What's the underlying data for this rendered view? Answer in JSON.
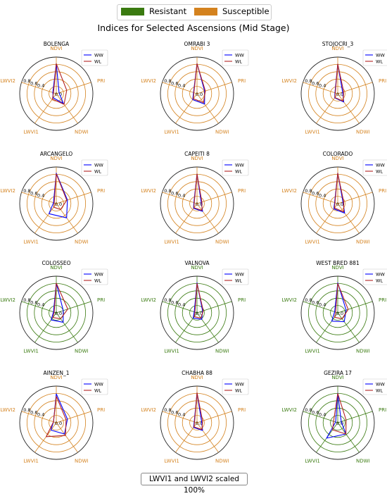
{
  "legend": {
    "items": [
      {
        "label": "Resistant",
        "color": "#3a7a10"
      },
      {
        "label": "Susceptible",
        "color": "#d4821e"
      }
    ]
  },
  "title": "Indices for Selected Ascensions (Mid Stage)",
  "footer_note": "LWVI1 and LWVI2 scaled 100%",
  "chart_data": [
    {
      "type": "radar",
      "title": "BOLENGA",
      "group": "Susceptible",
      "axes": [
        "NDVI",
        "PRI",
        "NDWI",
        "LWVI1",
        "LWVI2"
      ],
      "rlim": [
        0,
        1.0
      ],
      "rticks": [
        "0.0",
        "0.4",
        "0.6",
        "0.8"
      ],
      "series": [
        {
          "name": "WW",
          "color": "#0000ff",
          "values": [
            0.82,
            0.08,
            0.33,
            0.14,
            0.1
          ]
        },
        {
          "name": "WL",
          "color": "#b22222",
          "values": [
            0.82,
            0.3,
            0.36,
            0.18,
            0.08
          ]
        }
      ]
    },
    {
      "type": "radar",
      "title": "OMRABI 3",
      "group": "Susceptible",
      "axes": [
        "NDVI",
        "PRI",
        "NDWI",
        "LWVI1",
        "LWVI2"
      ],
      "rlim": [
        0,
        1.0
      ],
      "rticks": [
        "0.0",
        "0.4",
        "0.6",
        "0.8"
      ],
      "series": [
        {
          "name": "WW",
          "color": "#0000ff",
          "values": [
            0.82,
            0.22,
            0.35,
            0.2,
            0.1
          ]
        },
        {
          "name": "WL",
          "color": "#b22222",
          "values": [
            0.82,
            0.24,
            0.3,
            0.17,
            0.09
          ]
        }
      ]
    },
    {
      "type": "radar",
      "title": "STOJOCRI_3",
      "group": "Susceptible",
      "axes": [
        "NDVI",
        "PRI",
        "NDWI",
        "LWVI1",
        "LWVI2"
      ],
      "rlim": [
        0,
        1.0
      ],
      "rticks": [
        "0.0",
        "0.4",
        "0.6",
        "0.8"
      ],
      "series": [
        {
          "name": "WW",
          "color": "#0000ff",
          "values": [
            0.81,
            0.14,
            0.28,
            0.14,
            0.08
          ]
        },
        {
          "name": "WL",
          "color": "#b22222",
          "values": [
            0.81,
            0.17,
            0.25,
            0.13,
            0.07
          ]
        }
      ]
    },
    {
      "type": "radar",
      "title": "ARCANGELO",
      "group": "Susceptible",
      "axes": [
        "NDVI",
        "PRI",
        "NDWI",
        "LWVI1",
        "LWVI2"
      ],
      "rlim": [
        0,
        1.0
      ],
      "rticks": [
        "0.0",
        "0.4",
        "0.6",
        "0.8"
      ],
      "series": [
        {
          "name": "WW",
          "color": "#0000ff",
          "values": [
            0.83,
            0.32,
            0.48,
            0.34,
            0.08
          ]
        },
        {
          "name": "WL",
          "color": "#b22222",
          "values": [
            0.81,
            0.3,
            0.2,
            0.12,
            0.06
          ]
        }
      ]
    },
    {
      "type": "radar",
      "title": "CAPEITI 8",
      "group": "Susceptible",
      "axes": [
        "NDVI",
        "PRI",
        "NDWI",
        "LWVI1",
        "LWVI2"
      ],
      "rlim": [
        0,
        1.0
      ],
      "rticks": [
        "0.0",
        "0.4",
        "0.6",
        "0.8"
      ],
      "series": [
        {
          "name": "WW",
          "color": "#0000ff",
          "values": [
            0.81,
            0.12,
            0.26,
            0.16,
            0.09
          ]
        },
        {
          "name": "WL",
          "color": "#b22222",
          "values": [
            0.81,
            0.14,
            0.23,
            0.14,
            0.08
          ]
        }
      ]
    },
    {
      "type": "radar",
      "title": "COLORADO",
      "group": "Susceptible",
      "axes": [
        "NDVI",
        "PRI",
        "NDWI",
        "LWVI1",
        "LWVI2"
      ],
      "rlim": [
        0,
        1.0
      ],
      "rticks": [
        "0.0",
        "0.4",
        "0.6",
        "0.8"
      ],
      "series": [
        {
          "name": "WW",
          "color": "#0000ff",
          "values": [
            0.83,
            0.15,
            0.32,
            0.18,
            0.09
          ]
        },
        {
          "name": "WL",
          "color": "#b22222",
          "values": [
            0.83,
            0.17,
            0.28,
            0.15,
            0.08
          ]
        }
      ]
    },
    {
      "type": "radar",
      "title": "COLOSSEO",
      "group": "Resistant",
      "axes": [
        "NDVI",
        "PRI",
        "NDWI",
        "LWVI1",
        "LWVI2"
      ],
      "rlim": [
        0,
        1.0
      ],
      "rticks": [
        "0.0",
        "0.4",
        "0.6",
        "0.8"
      ],
      "series": [
        {
          "name": "WW",
          "color": "#0000ff",
          "values": [
            0.81,
            0.2,
            0.32,
            0.24,
            0.08
          ]
        },
        {
          "name": "WL",
          "color": "#b22222",
          "values": [
            0.81,
            0.33,
            0.2,
            0.16,
            0.06
          ]
        }
      ]
    },
    {
      "type": "radar",
      "title": "VALNOVA",
      "group": "Resistant",
      "axes": [
        "NDVI",
        "PRI",
        "NDWI",
        "LWVI1",
        "LWVI2"
      ],
      "rlim": [
        0,
        1.0
      ],
      "rticks": [
        "0.0",
        "0.4",
        "0.6",
        "0.8"
      ],
      "series": [
        {
          "name": "WW",
          "color": "#0000ff",
          "values": [
            0.82,
            0.16,
            0.22,
            0.18,
            0.08
          ]
        },
        {
          "name": "WL",
          "color": "#b22222",
          "values": [
            0.8,
            0.18,
            0.18,
            0.13,
            0.06
          ]
        }
      ]
    },
    {
      "type": "radar",
      "title": "WEST BRED 881",
      "group": "Resistant",
      "axes": [
        "NDVI",
        "PRI",
        "NDWI",
        "LWVI1",
        "LWVI2"
      ],
      "rlim": [
        0,
        1.0
      ],
      "rticks": [
        "0.0",
        "0.4",
        "0.6",
        "0.8"
      ],
      "series": [
        {
          "name": "WW",
          "color": "#0000ff",
          "values": [
            0.82,
            0.24,
            0.3,
            0.28,
            0.09
          ]
        },
        {
          "name": "WL",
          "color": "#b22222",
          "values": [
            0.8,
            0.3,
            0.2,
            0.15,
            0.06
          ]
        }
      ]
    },
    {
      "type": "radar",
      "title": "AINZEN_1",
      "group": "Susceptible",
      "axes": [
        "NDVI",
        "PRI",
        "NDWI",
        "LWVI1",
        "LWVI2"
      ],
      "rlim": [
        0,
        1.0
      ],
      "rticks": [
        "0.0",
        "0.4",
        "0.6",
        "0.8"
      ],
      "series": [
        {
          "name": "WW",
          "color": "#0000ff",
          "values": [
            0.79,
            0.32,
            0.38,
            0.25,
            0.08
          ]
        },
        {
          "name": "WL",
          "color": "#b22222",
          "values": [
            0.72,
            0.28,
            0.43,
            0.47,
            0.08
          ]
        }
      ]
    },
    {
      "type": "radar",
      "title": "CHABHA 88",
      "group": "Susceptible",
      "axes": [
        "NDVI",
        "PRI",
        "NDWI",
        "LWVI1",
        "LWVI2"
      ],
      "rlim": [
        0,
        1.0
      ],
      "rticks": [
        "0.0",
        "0.4",
        "0.6",
        "0.8"
      ],
      "series": [
        {
          "name": "WW",
          "color": "#0000ff",
          "values": [
            0.81,
            0.13,
            0.26,
            0.16,
            0.08
          ]
        },
        {
          "name": "WL",
          "color": "#b22222",
          "values": [
            0.82,
            0.16,
            0.23,
            0.14,
            0.07
          ]
        }
      ]
    },
    {
      "type": "radar",
      "title": "GEZIRA 17",
      "group": "Resistant",
      "axes": [
        "NDVI",
        "PRI",
        "NDWI",
        "LWVI1",
        "LWVI2"
      ],
      "rlim": [
        0,
        1.0
      ],
      "rticks": [
        "0.0",
        "0.4",
        "0.6",
        "0.8"
      ],
      "series": [
        {
          "name": "WW",
          "color": "#0000ff",
          "values": [
            0.81,
            0.1,
            0.38,
            0.52,
            0.06
          ]
        },
        {
          "name": "WL",
          "color": "#b22222",
          "values": [
            0.8,
            0.24,
            0.38,
            0.24,
            0.12
          ]
        }
      ]
    }
  ]
}
